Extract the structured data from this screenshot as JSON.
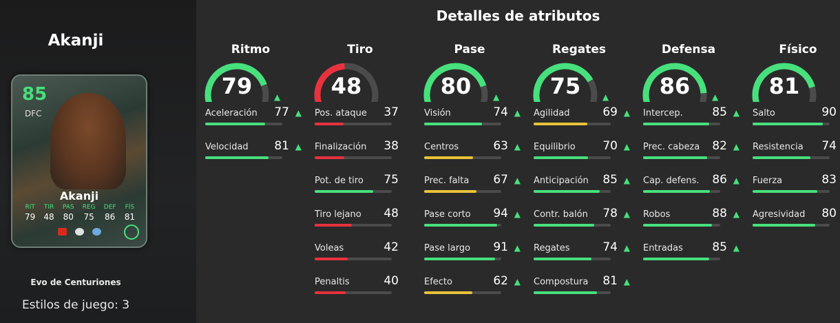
{
  "player": {
    "name": "Akanji",
    "card": {
      "overall": "85",
      "position": "DFC",
      "name": "Akanji",
      "stats": [
        {
          "label": "RIT",
          "value": "79"
        },
        {
          "label": "TIR",
          "value": "48"
        },
        {
          "label": "PAS",
          "value": "80"
        },
        {
          "label": "REG",
          "value": "75"
        },
        {
          "label": "DEF",
          "value": "86"
        },
        {
          "label": "FÍS",
          "value": "81"
        }
      ]
    },
    "evolution": "Evo de Centuriones",
    "playstyles": "Estilos de juego: 3"
  },
  "header": {
    "title": "Detalles de atributos"
  },
  "colors": {
    "green": "#47e07c",
    "yellow": "#e8c23a",
    "red": "#e8323e",
    "track": "#4b4b4c"
  },
  "groups": [
    {
      "title": "Ritmo",
      "value": "79",
      "color": "#47e07c",
      "up": true,
      "stats": [
        {
          "label": "Aceleración",
          "value": "77",
          "up": true
        },
        {
          "label": "Velocidad",
          "value": "81",
          "up": true
        }
      ]
    },
    {
      "title": "Tiro",
      "value": "48",
      "color": "#e8323e",
      "up": false,
      "stats": [
        {
          "label": "Pos. ataque",
          "value": "37",
          "up": false
        },
        {
          "label": "Finalización",
          "value": "38",
          "up": false
        },
        {
          "label": "Pot. de tiro",
          "value": "75",
          "up": false
        },
        {
          "label": "Tiro lejano",
          "value": "48",
          "up": false
        },
        {
          "label": "Voleas",
          "value": "42",
          "up": false
        },
        {
          "label": "Penaltis",
          "value": "40",
          "up": false
        }
      ]
    },
    {
      "title": "Pase",
      "value": "80",
      "color": "#47e07c",
      "up": true,
      "stats": [
        {
          "label": "Visión",
          "value": "74",
          "up": true
        },
        {
          "label": "Centros",
          "value": "63",
          "up": true
        },
        {
          "label": "Prec. falta",
          "value": "67",
          "up": true
        },
        {
          "label": "Pase corto",
          "value": "94",
          "up": true
        },
        {
          "label": "Pase largo",
          "value": "91",
          "up": true
        },
        {
          "label": "Efecto",
          "value": "62",
          "up": true
        }
      ]
    },
    {
      "title": "Regates",
      "value": "75",
      "color": "#47e07c",
      "up": true,
      "stats": [
        {
          "label": "Agilidad",
          "value": "69",
          "up": true
        },
        {
          "label": "Equilibrio",
          "value": "70",
          "up": true
        },
        {
          "label": "Anticipación",
          "value": "85",
          "up": true
        },
        {
          "label": "Contr. balón",
          "value": "78",
          "up": true
        },
        {
          "label": "Regates",
          "value": "74",
          "up": true
        },
        {
          "label": "Compostura",
          "value": "81",
          "up": true
        }
      ]
    },
    {
      "title": "Defensa",
      "value": "86",
      "color": "#47e07c",
      "up": true,
      "stats": [
        {
          "label": "Intercep.",
          "value": "85",
          "up": true
        },
        {
          "label": "Prec. cabeza",
          "value": "82",
          "up": true
        },
        {
          "label": "Cap. defens.",
          "value": "86",
          "up": true
        },
        {
          "label": "Robos",
          "value": "88",
          "up": true
        },
        {
          "label": "Entradas",
          "value": "85",
          "up": true
        }
      ]
    },
    {
      "title": "Físico",
      "value": "81",
      "color": "#47e07c",
      "up": false,
      "stats": [
        {
          "label": "Salto",
          "value": "90",
          "up": false
        },
        {
          "label": "Resistencia",
          "value": "74",
          "up": false
        },
        {
          "label": "Fuerza",
          "value": "83",
          "up": false
        },
        {
          "label": "Agresividad",
          "value": "80",
          "up": false
        }
      ]
    }
  ]
}
